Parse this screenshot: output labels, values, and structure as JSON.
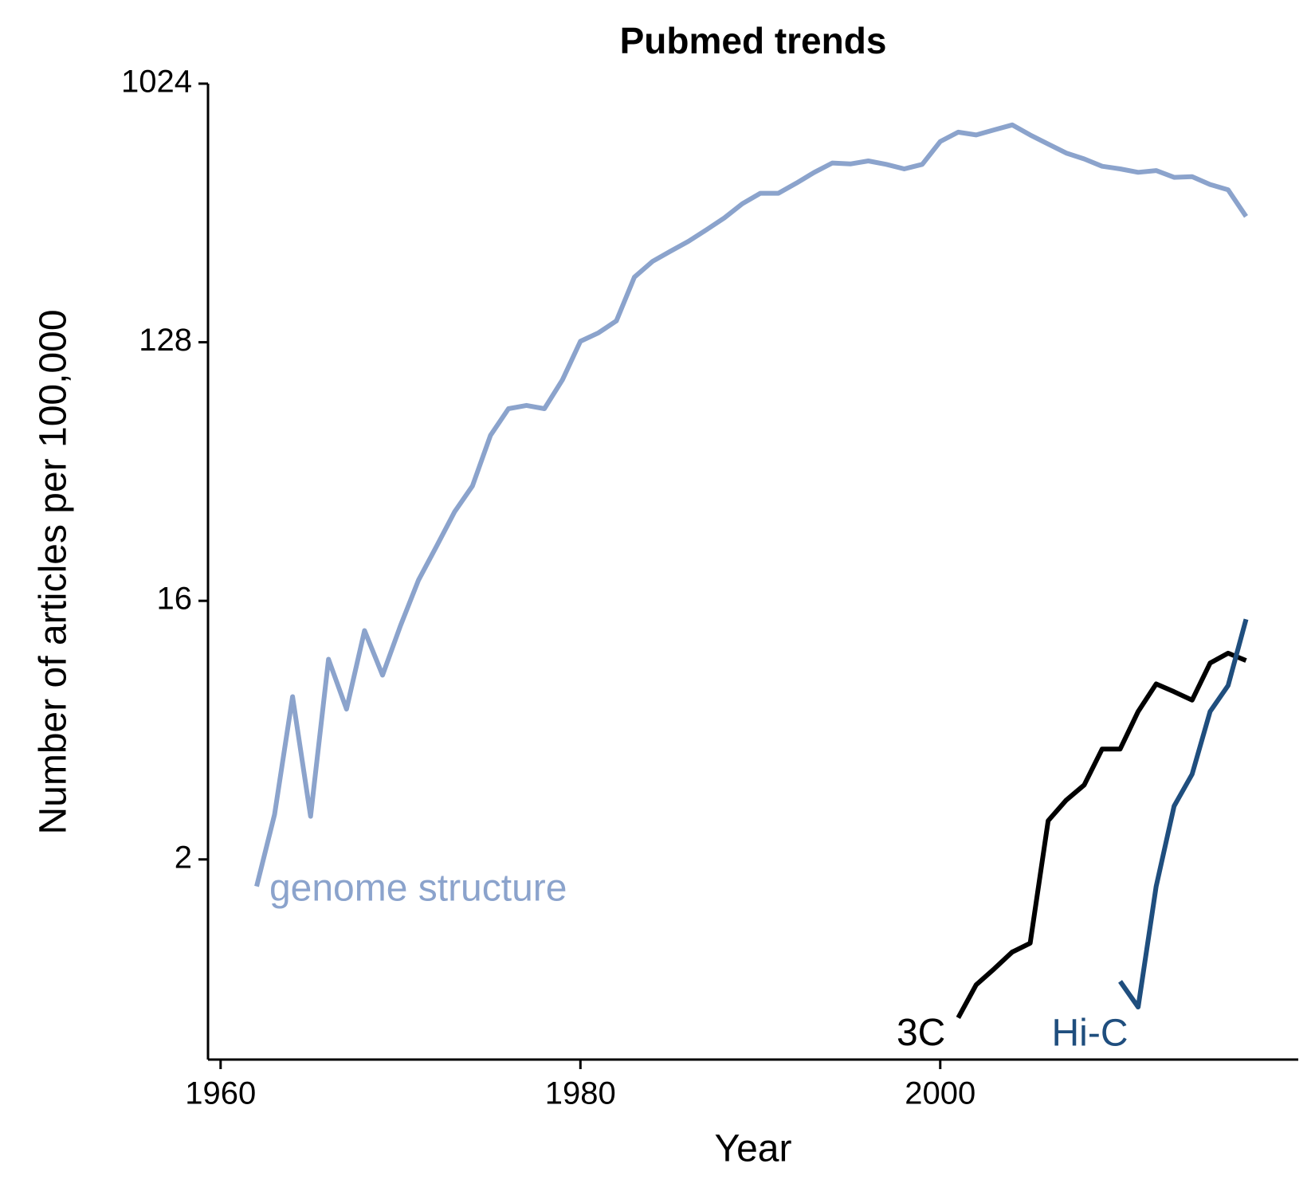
{
  "chart_data": {
    "type": "line",
    "title": "Pubmed trends",
    "x_label": "Year",
    "y_label": "Number of articles per 100,000",
    "xlim": [
      1959.3,
      2019.9
    ],
    "xticks": [
      1960,
      1980,
      2000
    ],
    "ylim": [
      0.4,
      1024
    ],
    "yticks": [
      2,
      16,
      128,
      1024
    ],
    "ylog": true,
    "grid": false,
    "series": [
      {
        "name": "genome structure",
        "color": "#8ba3cc",
        "x": [
          1962,
          1963,
          1964,
          1965,
          1966,
          1967,
          1968,
          1969,
          1970,
          1971,
          1972,
          1973,
          1974,
          1975,
          1976,
          1977,
          1978,
          1979,
          1980,
          1981,
          1982,
          1983,
          1984,
          1985,
          1986,
          1987,
          1988,
          1989,
          1990,
          1991,
          1992,
          1993,
          1994,
          1995,
          1996,
          1997,
          1998,
          1999,
          2000,
          2001,
          2002,
          2003,
          2004,
          2005,
          2006,
          2007,
          2008,
          2009,
          2010,
          2011,
          2012,
          2013,
          2014,
          2015,
          2016,
          2017
        ],
        "values": [
          1.61,
          2.87,
          7.4,
          2.83,
          10.0,
          6.7,
          12.6,
          8.8,
          13.1,
          18.9,
          24.8,
          32.7,
          40.3,
          60.5,
          75,
          77,
          75,
          94.6,
          129,
          138,
          152,
          216,
          245,
          266,
          288,
          316,
          348,
          390,
          424,
          424,
          460,
          502,
          541,
          537,
          550,
          535,
          516,
          535,
          643,
          693,
          678,
          706,
          735,
          678,
          630,
          586,
          559,
          527,
          516,
          502,
          509,
          482,
          485,
          455,
          436,
          352
        ]
      },
      {
        "name": "3C",
        "color": "#000000",
        "x": [
          2001,
          2002,
          2003,
          2004,
          2005,
          2006,
          2007,
          2008,
          2009,
          2010,
          2011,
          2012,
          2013,
          2014,
          2015,
          2016,
          2017
        ],
        "values": [
          0.56,
          0.73,
          0.83,
          0.95,
          1.02,
          2.73,
          3.22,
          3.64,
          4.86,
          4.86,
          6.57,
          8.2,
          7.7,
          7.2,
          9.7,
          10.5,
          9.9
        ]
      },
      {
        "name": "Hi-C",
        "color": "#1f4e7e",
        "x": [
          2010,
          2011,
          2012,
          2013,
          2014,
          2015,
          2016,
          2017
        ],
        "values": [
          0.75,
          0.61,
          1.61,
          3.07,
          3.97,
          6.57,
          8.1,
          13.8
        ]
      }
    ]
  }
}
